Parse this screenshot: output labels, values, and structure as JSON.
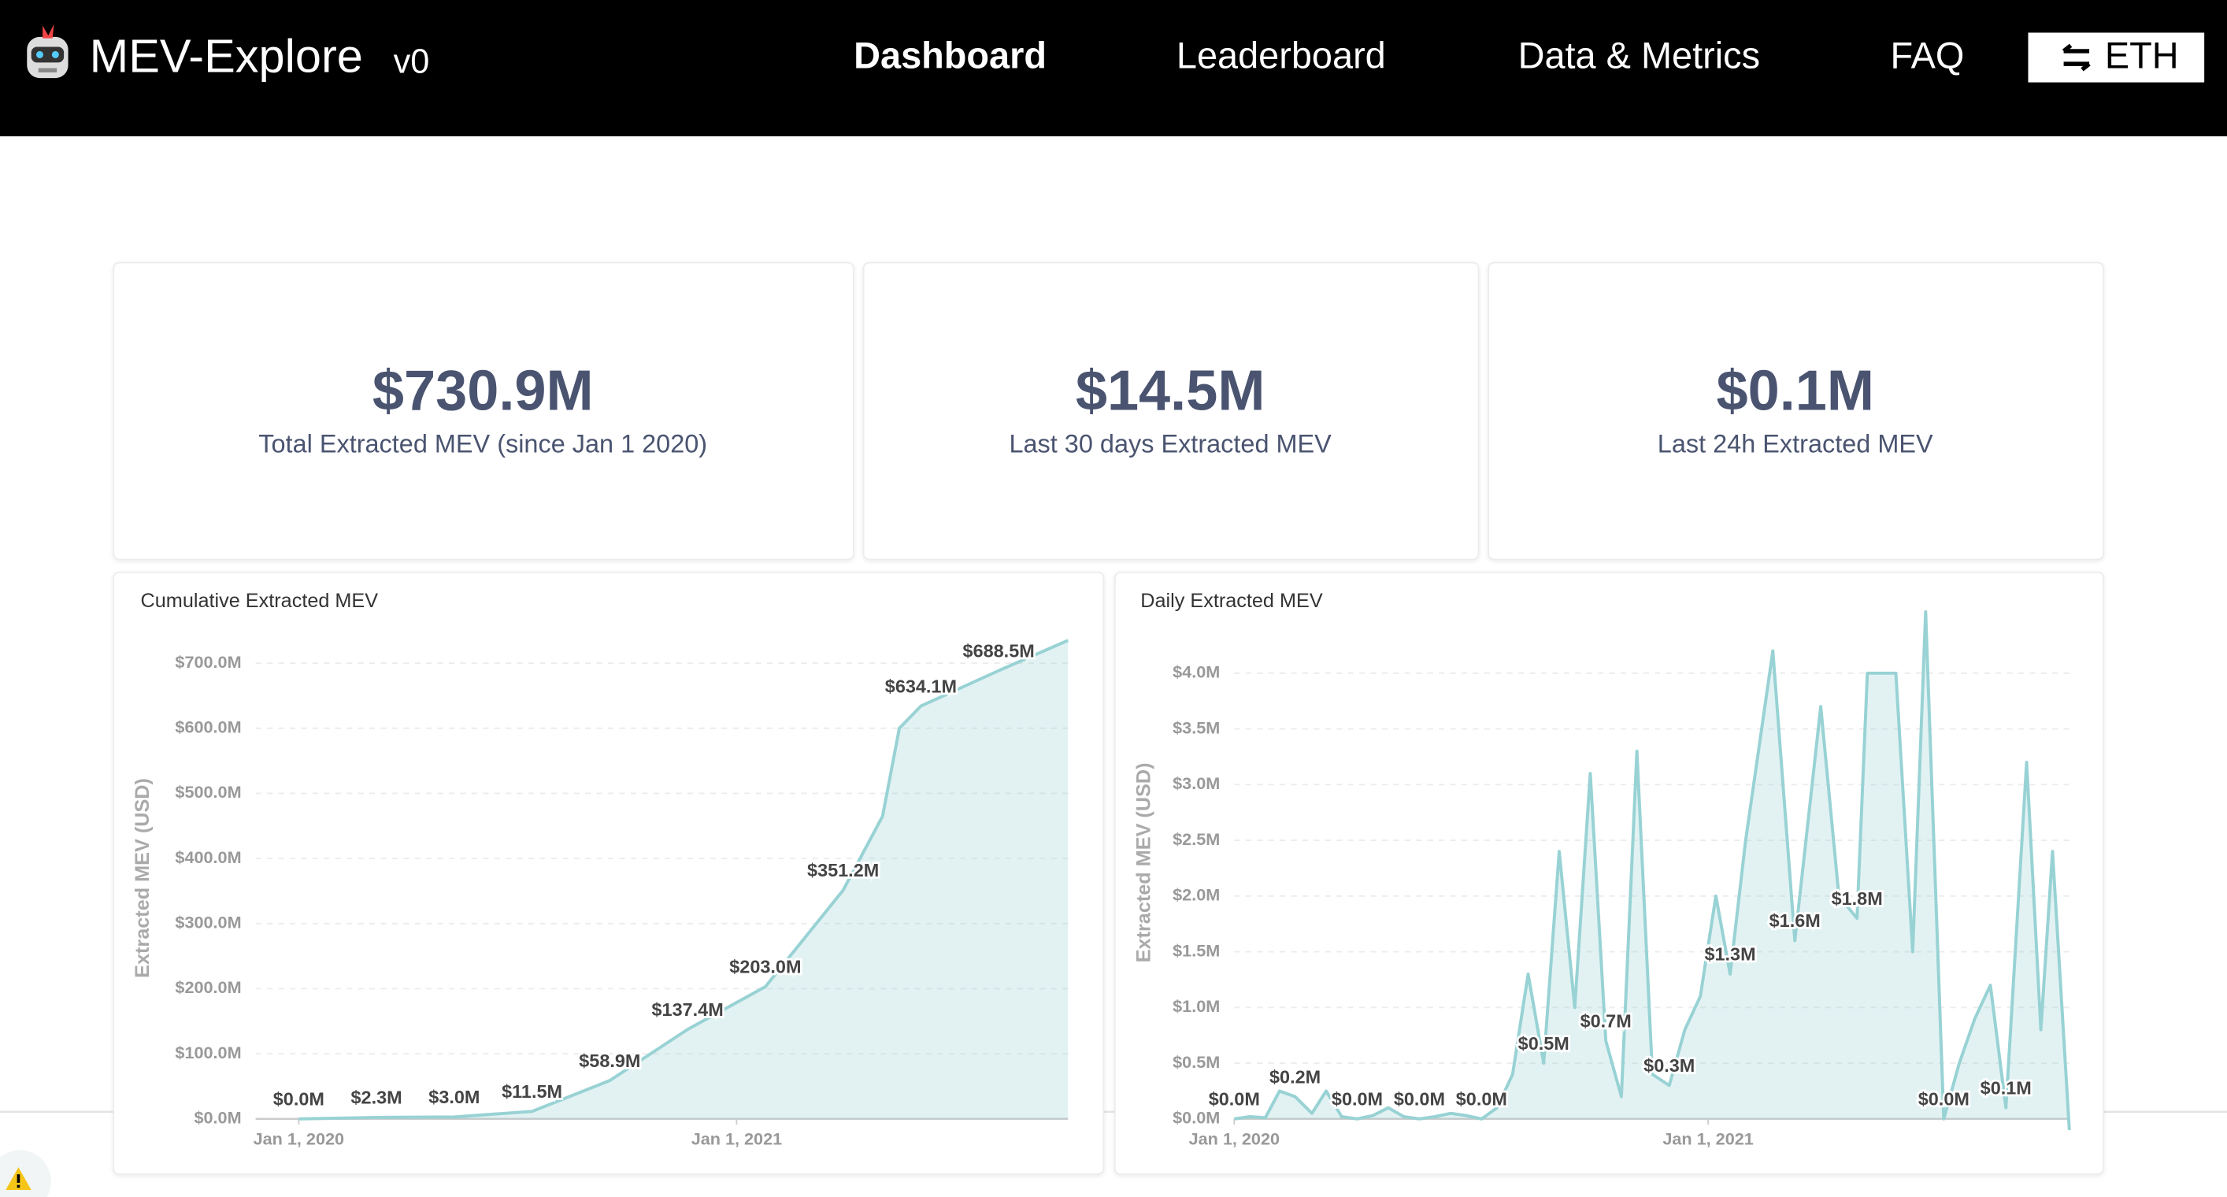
{
  "header": {
    "brand": "MEV-Explore",
    "version": "v0",
    "nav": [
      "Dashboard",
      "Leaderboard",
      "Data & Metrics",
      "FAQ"
    ],
    "network": "ETH"
  },
  "stats": [
    {
      "value": "$730.9M",
      "label": "Total Extracted MEV (since Jan 1 2020)"
    },
    {
      "value": "$14.5M",
      "label": "Last 30 days Extracted MEV"
    },
    {
      "value": "$0.1M",
      "label": "Last 24h Extracted MEV"
    }
  ],
  "chart_data": [
    {
      "type": "area",
      "title": "Cumulative Extracted MEV",
      "ylabel": "Extracted MEV (USD)",
      "color": "#98d2d4",
      "grid": true,
      "x": [
        "2020-01-01",
        "2020-03-06",
        "2020-05-10",
        "2020-07-14",
        "2020-09-17",
        "2020-11-21",
        "2021-01-25",
        "2021-03-31",
        "2021-05-03",
        "2021-05-17",
        "2021-06-04",
        "2021-08-08",
        "2021-10-05"
      ],
      "values": [
        0.0,
        2.3,
        3.0,
        11.5,
        58.9,
        137.4,
        203.0,
        351.2,
        465,
        600,
        634.1,
        688.5,
        735
      ],
      "value_labels": [
        "$0.0M",
        "$2.3M",
        "$3.0M",
        "$11.5M",
        "$58.9M",
        "$137.4M",
        "$203.0M",
        "$351.2M",
        null,
        null,
        "$634.1M",
        "$688.5M",
        null
      ],
      "xlim": [
        "2019-11-26",
        "2021-10-05"
      ],
      "xticks": [
        {
          "value": "2020-01-01",
          "label": "Jan 1, 2020"
        },
        {
          "value": "2021-01-01",
          "label": "Jan 1, 2021"
        }
      ],
      "ylim": [
        0,
        740
      ],
      "yticks": [
        {
          "value": 0,
          "label": "$0.0M"
        },
        {
          "value": 100,
          "label": "$100.0M"
        },
        {
          "value": 200,
          "label": "$200.0M"
        },
        {
          "value": 300,
          "label": "$300.0M"
        },
        {
          "value": 400,
          "label": "$400.0M"
        },
        {
          "value": 500,
          "label": "$500.0M"
        },
        {
          "value": 600,
          "label": "$600.0M"
        },
        {
          "value": 700,
          "label": "$700.0M"
        }
      ]
    },
    {
      "type": "area",
      "title": "Daily Extracted MEV",
      "ylabel": "Extracted MEV (USD)",
      "color": "#98d2d4",
      "grid": true,
      "x": [
        "2020-01-01",
        "2020-01-13",
        "2020-01-25",
        "2020-02-05",
        "2020-02-17",
        "2020-03-01",
        "2020-03-12",
        "2020-03-24",
        "2020-04-05",
        "2020-04-17",
        "2020-04-29",
        "2020-05-11",
        "2020-05-23",
        "2020-06-04",
        "2020-06-16",
        "2020-06-28",
        "2020-07-10",
        "2020-07-22",
        "2020-08-03",
        "2020-08-15",
        "2020-08-27",
        "2020-09-08",
        "2020-09-20",
        "2020-10-02",
        "2020-10-14",
        "2020-10-26",
        "2020-11-07",
        "2020-11-19",
        "2020-12-02",
        "2020-12-14",
        "2020-12-26",
        "2021-01-07",
        "2021-01-18",
        "2021-01-30",
        "2021-02-20",
        "2021-03-09",
        "2021-03-29",
        "2021-04-12",
        "2021-04-26",
        "2021-05-04",
        "2021-05-26",
        "2021-06-08",
        "2021-06-18",
        "2021-07-02",
        "2021-07-14",
        "2021-07-26",
        "2021-08-07",
        "2021-08-19",
        "2021-09-04",
        "2021-09-15",
        "2021-09-24",
        "2021-10-07"
      ],
      "values": [
        0.0,
        0.02,
        0.01,
        0.25,
        0.2,
        0.05,
        0.25,
        0.02,
        0.0,
        0.03,
        0.1,
        0.02,
        0.0,
        0.02,
        0.05,
        0.03,
        0.0,
        0.1,
        0.4,
        1.3,
        0.5,
        2.4,
        1.0,
        3.1,
        0.7,
        0.2,
        3.3,
        0.4,
        0.3,
        0.8,
        1.1,
        2.0,
        1.3,
        2.5,
        4.2,
        1.6,
        3.7,
        2.0,
        1.8,
        4.0,
        4.0,
        1.5,
        4.55,
        0.0,
        0.5,
        0.9,
        1.2,
        0.1,
        3.2,
        0.8,
        2.4,
        -0.1
      ],
      "value_labels": [
        "$0.0M",
        null,
        null,
        null,
        "$0.2M",
        null,
        null,
        null,
        "$0.0M",
        null,
        null,
        null,
        "$0.0M",
        null,
        null,
        null,
        "$0.0M",
        null,
        null,
        null,
        "$0.5M",
        null,
        null,
        null,
        "$0.7M",
        null,
        null,
        null,
        "$0.3M",
        null,
        null,
        null,
        "$1.3M",
        null,
        null,
        "$1.6M",
        null,
        null,
        "$1.8M",
        null,
        null,
        null,
        null,
        "$0.0M",
        null,
        null,
        null,
        "$0.1M",
        null,
        null,
        null,
        null
      ],
      "xlim": [
        "2020-01-01",
        "2021-10-07"
      ],
      "xticks": [
        {
          "value": "2020-01-01",
          "label": "Jan 1, 2020"
        },
        {
          "value": "2021-01-01",
          "label": "Jan 1, 2021"
        }
      ],
      "ylim": [
        0,
        4.6
      ],
      "yticks": [
        {
          "value": 0,
          "label": "$0.0M"
        },
        {
          "value": 0.5,
          "label": "$0.5M"
        },
        {
          "value": 1,
          "label": "$1.0M"
        },
        {
          "value": 1.5,
          "label": "$1.5M"
        },
        {
          "value": 2,
          "label": "$2.0M"
        },
        {
          "value": 2.5,
          "label": "$2.5M"
        },
        {
          "value": 3,
          "label": "$3.0M"
        },
        {
          "value": 3.5,
          "label": "$3.5M"
        },
        {
          "value": 4,
          "label": "$4.0M"
        }
      ]
    }
  ]
}
